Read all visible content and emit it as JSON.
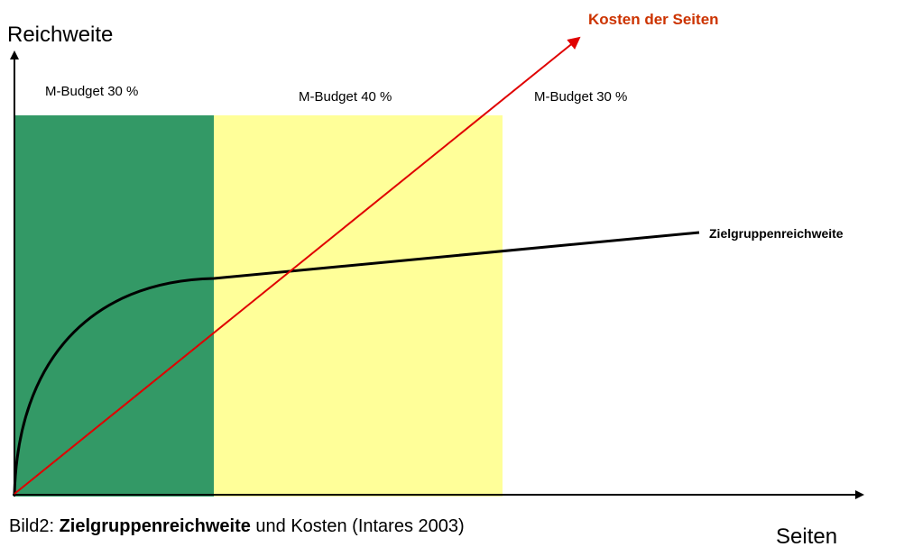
{
  "axes": {
    "y_label": "Reichweite",
    "x_label": "Seiten"
  },
  "lines": {
    "cost": "Kosten der Seiten",
    "reach": "Zielgruppenreichweite"
  },
  "zones": [
    "M-Budget 30 %",
    "M-Budget 40 %",
    "M-Budget 30 %"
  ],
  "caption": {
    "prefix": "Bild2: ",
    "bold": "Zielgruppenreichweite",
    "suffix": " und Kosten (Intares 2003)"
  }
}
